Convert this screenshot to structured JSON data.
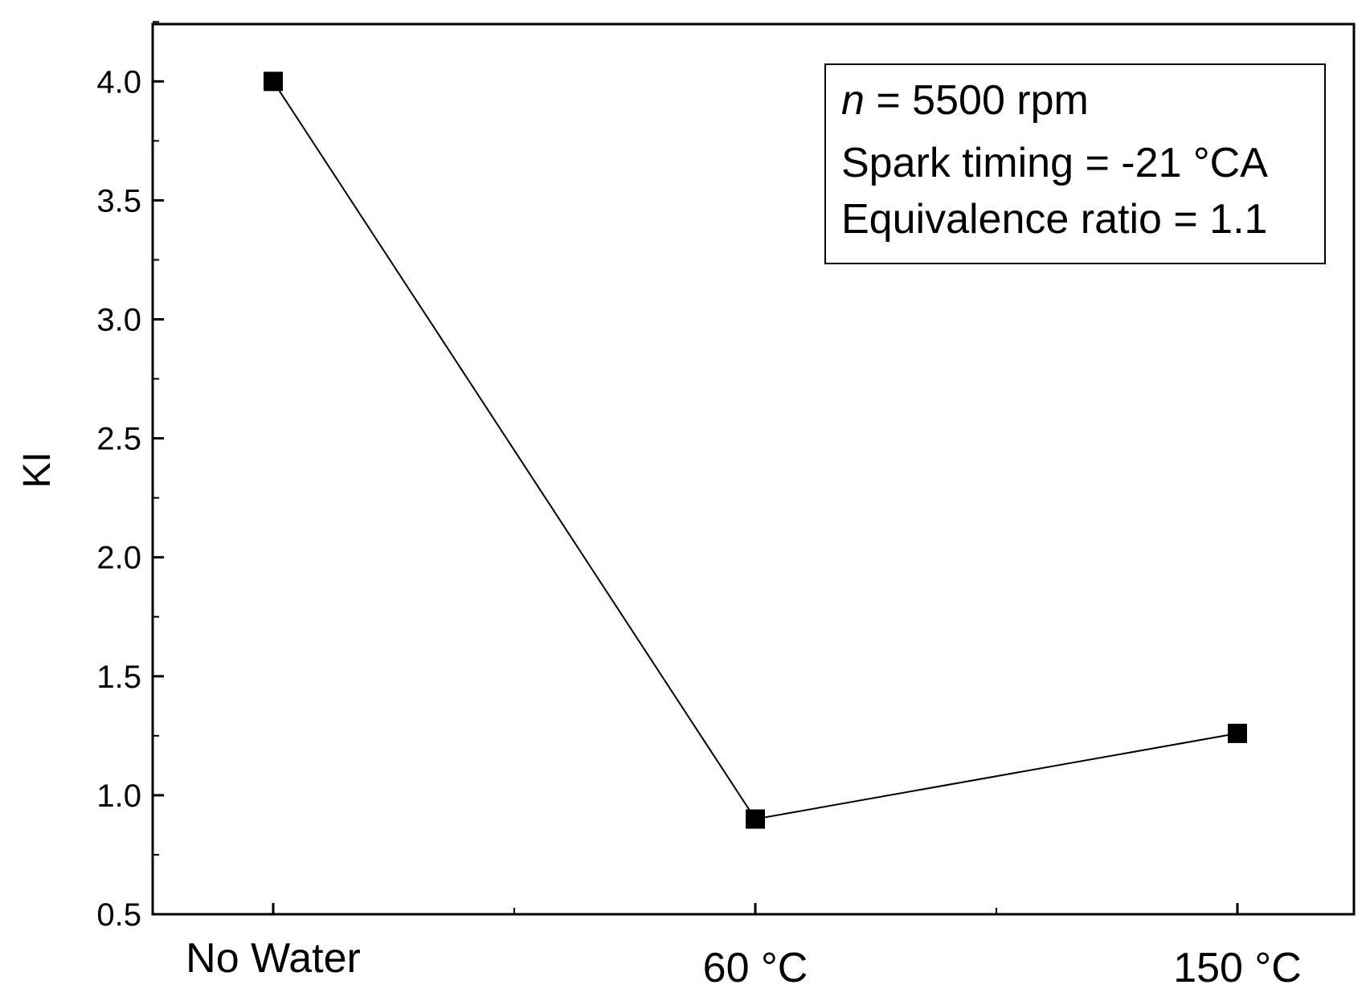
{
  "chart_data": {
    "type": "line",
    "title": "",
    "xlabel": "",
    "ylabel": "KI",
    "ylim": [
      0.5,
      4.25
    ],
    "yticks": [
      0.5,
      1.0,
      1.5,
      2.0,
      2.5,
      3.0,
      3.5,
      4.0
    ],
    "ytick_labels": [
      "0.5",
      "1.0",
      "1.5",
      "2.0",
      "2.5",
      "3.0",
      "3.5",
      "4.0"
    ],
    "categories": [
      "No Water",
      "60 °C",
      "150 °C"
    ],
    "series": [
      {
        "name": "KI",
        "values": [
          4.0,
          0.9,
          1.26
        ],
        "marker": "square",
        "color": "#000000"
      }
    ],
    "legend_position": "top-right",
    "annotation": {
      "line1_var": "n",
      "line1_rest": " = 5500 rpm",
      "line2": "Spark timing = -21 °CA",
      "line3": "Equivalence ratio = 1.1"
    }
  }
}
